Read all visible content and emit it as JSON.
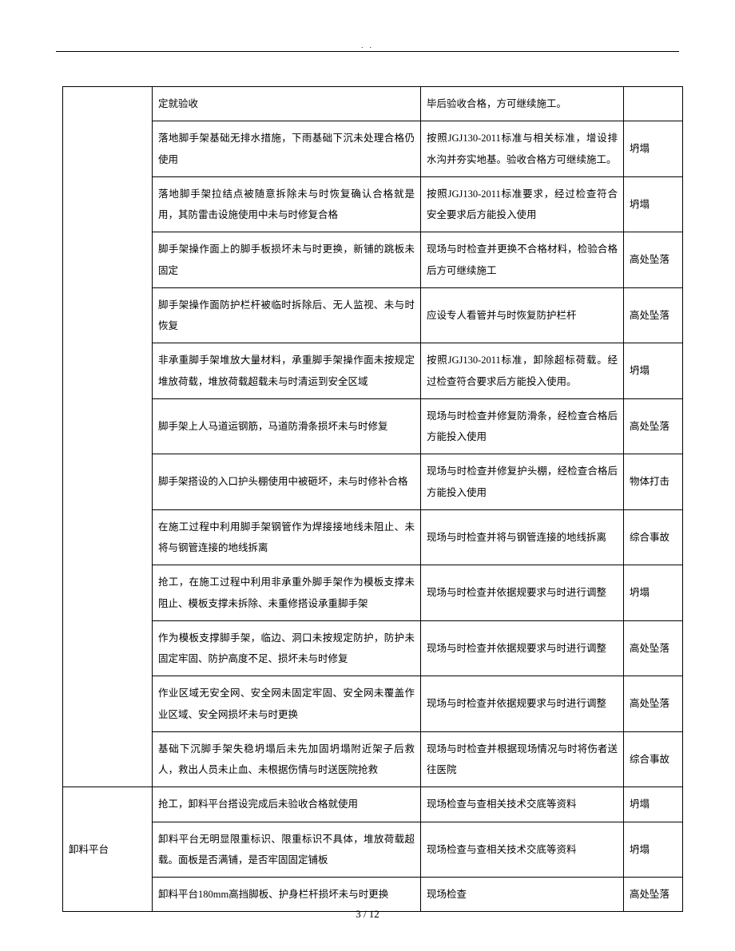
{
  "page": {
    "header_dots": ". .",
    "footer": "3 / 12"
  },
  "columns": {
    "w0": 112,
    "w1": 336,
    "w2": 254,
    "w3": 74
  },
  "group1": {
    "label": "",
    "rows": [
      {
        "c1": "定就验收",
        "c2": "毕后验收合格，方可继续施工。",
        "c3": ""
      },
      {
        "c1": "落地脚手架基础无排水措施，下雨基础下沉未处理合格仍使用",
        "c2": "按照JGJ130-2011标准与相关标准，增设排水沟并夯实地基。验收合格方可继续施工。",
        "c3": "坍塌"
      },
      {
        "c1": "落地脚手架拉结点被随意拆除未与时恢复确认合格就是用，其防雷击设施使用中未与时修复合格",
        "c2": "按照JGJ130-2011标准要求，经过检查符合安全要求后方能投入使用",
        "c3": "坍塌"
      },
      {
        "c1": "脚手架操作面上的脚手板损坏未与时更换，新铺的跳板未固定",
        "c2": "现场与时检查并更换不合格材料，检验合格后方可继续施工",
        "c3": "高处坠落"
      },
      {
        "c1": "脚手架操作面防护栏杆被临时拆除后、无人监视、未与时恢复",
        "c2": "应设专人看管并与时恢复防护栏杆",
        "c3": "高处坠落"
      },
      {
        "c1": "非承重脚手架堆放大量材料，承重脚手架操作面未按规定堆放荷载，堆放荷载超载未与时清运到安全区域",
        "c2": "按照JGJ130-2011标准，卸除超标荷载。经过检查符合要求后方能投入使用。",
        "c3": "坍塌"
      },
      {
        "c1": "脚手架上人马道运钢筋，马道防滑条损坏未与时修复",
        "c2": "现场与时检查并修复防滑条，经检查合格后方能投入使用",
        "c3": "高处坠落"
      },
      {
        "c1": "脚手架搭设的入口护头棚使用中被砸坏，未与时修补合格",
        "c2": "现场与时检查并修复护头棚，经检查合格后方能投入使用",
        "c3": "物体打击"
      },
      {
        "c1": "在施工过程中利用脚手架钢管作为焊接接地线未阻止、未将与钢管连接的地线拆离",
        "c2": "现场与时检查并将与钢管连接的地线拆离",
        "c3": "综合事故"
      },
      {
        "c1": "抢工，在施工过程中利用非承重外脚手架作为模板支撑未阻止、模板支撑未拆除、未重修搭设承重脚手架",
        "c2": "现场与时检查并依据规要求与时进行调整",
        "c3": "坍塌"
      },
      {
        "c1": "作为模板支撑脚手架，临边、洞口未按规定防护，防护未固定牢固、防护高度不足、损坏未与时修复",
        "c2": "现场与时检查并依据规要求与时进行调整",
        "c3": "高处坠落"
      },
      {
        "c1": "作业区域无安全网、安全网未固定牢固、安全网未覆盖作业区域、安全网损坏未与时更换",
        "c2": "现场与时检查并依据规要求与时进行调整",
        "c3": "高处坠落"
      },
      {
        "c1": "基础下沉脚手架失稳坍塌后未先加固坍塌附近架子后救人，救出人员未止血、未根据伤情与时送医院抢救",
        "c2": "现场与时检查并根据现场情况与时将伤者送往医院",
        "c3": "综合事故"
      }
    ]
  },
  "group2": {
    "label": "卸料平台",
    "rows": [
      {
        "c1": "抢工，卸料平台搭设完成后未验收合格就使用",
        "c2": "现场检查与查相关技术交底等资料",
        "c3": "坍塌"
      },
      {
        "c1": "卸料平台无明显限重标识、限重标识不具体，堆放荷载超载。面板是否满铺，是否牢固固定铺板",
        "c2": "现场检查与查相关技术交底等资料",
        "c3": "坍塌"
      },
      {
        "c1": "卸料平台180mm高挡脚板、护身栏杆损坏未与时更换",
        "c2": "现场检查",
        "c3": "高处坠落"
      }
    ]
  }
}
